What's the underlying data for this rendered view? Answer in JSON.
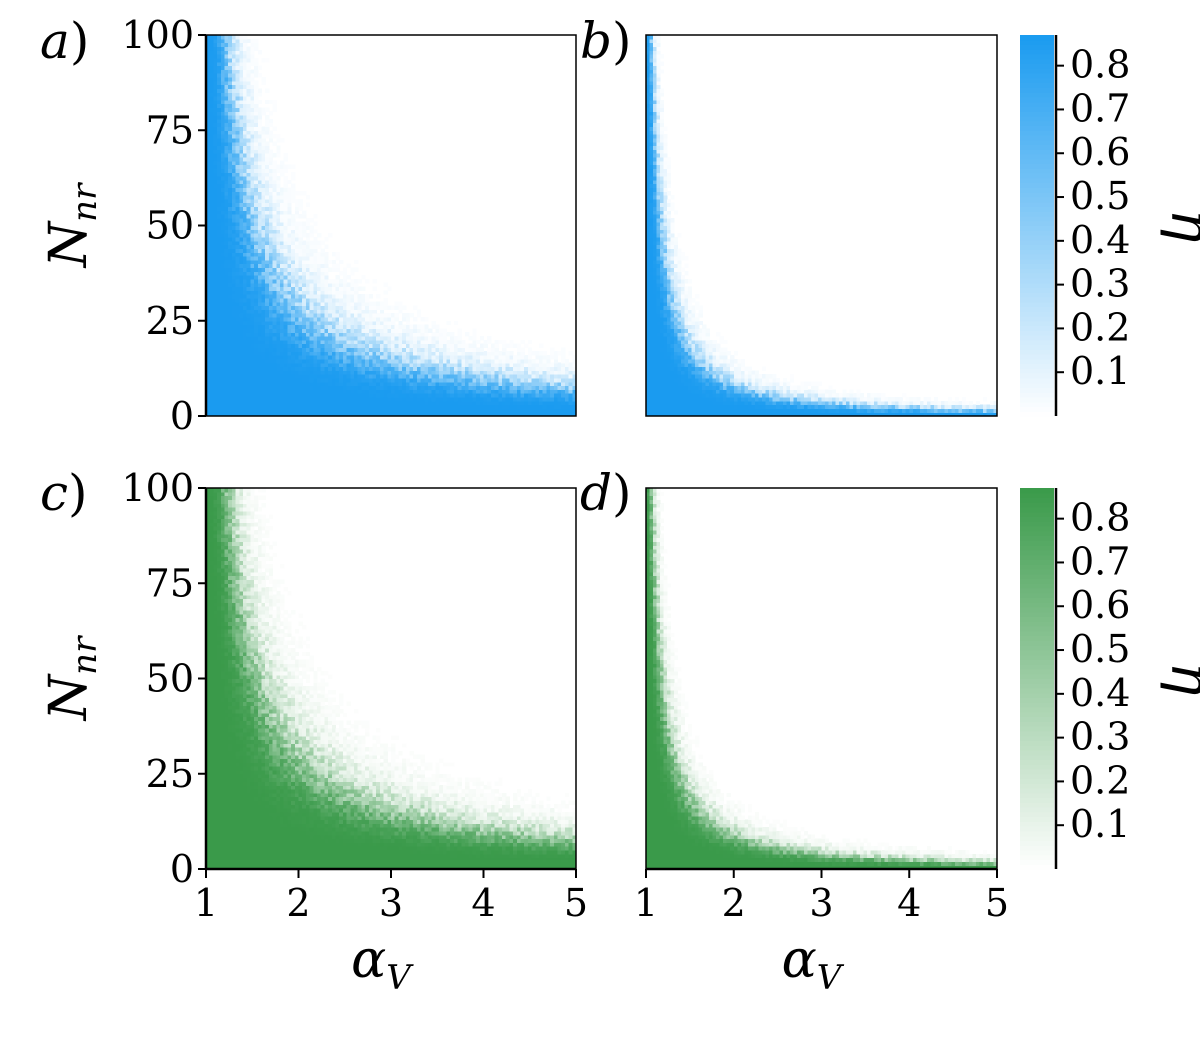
{
  "chart_data": [
    {
      "type": "heatmap",
      "panel_label": "a",
      "color": "#1a9bf0",
      "x_var": "α",
      "x_sub": "V",
      "y_var": "N",
      "y_sub": "nr",
      "xlim": [
        1,
        5
      ],
      "ylim": [
        0,
        100
      ],
      "xticks": [
        "1",
        "2",
        "3",
        "4",
        "5"
      ],
      "yticks": [
        "0",
        "25",
        "50",
        "75",
        "100"
      ],
      "show_xticks": false,
      "show_yticks": true,
      "boundary_k": 30,
      "boundary_power": 1.0,
      "transition_width": 0.35,
      "eta_max": 0.87
    },
    {
      "type": "heatmap",
      "panel_label": "b",
      "color": "#1a9bf0",
      "x_var": "α",
      "x_sub": "V",
      "y_var": "N",
      "y_sub": "nr",
      "xlim": [
        1,
        5
      ],
      "ylim": [
        0,
        100
      ],
      "xticks": [
        "1",
        "2",
        "3",
        "4",
        "5"
      ],
      "yticks": [
        "0",
        "25",
        "50",
        "75",
        "100"
      ],
      "show_xticks": false,
      "show_yticks": false,
      "boundary_k": 9,
      "boundary_power": 1.25,
      "transition_width": 0.32,
      "eta_max": 0.87
    },
    {
      "type": "heatmap",
      "panel_label": "c",
      "color": "#3a9a4a",
      "x_var": "α",
      "x_sub": "V",
      "y_var": "N",
      "y_sub": "nr",
      "xlim": [
        1,
        5
      ],
      "ylim": [
        0,
        100
      ],
      "xticks": [
        "1",
        "2",
        "3",
        "4",
        "5"
      ],
      "yticks": [
        "0",
        "25",
        "50",
        "75",
        "100"
      ],
      "show_xticks": true,
      "show_yticks": true,
      "boundary_k": 32,
      "boundary_power": 1.0,
      "transition_width": 0.35,
      "eta_max": 0.87
    },
    {
      "type": "heatmap",
      "panel_label": "d",
      "color": "#3a9a4a",
      "x_var": "α",
      "x_sub": "V",
      "y_var": "N",
      "y_sub": "nr",
      "xlim": [
        1,
        5
      ],
      "ylim": [
        0,
        100
      ],
      "xticks": [
        "1",
        "2",
        "3",
        "4",
        "5"
      ],
      "yticks": [
        "0",
        "25",
        "50",
        "75",
        "100"
      ],
      "show_xticks": true,
      "show_yticks": false,
      "boundary_k": 10,
      "boundary_power": 1.2,
      "transition_width": 0.32,
      "eta_max": 0.87
    }
  ],
  "colorbars": [
    {
      "color": "#1a9bf0",
      "label": "η",
      "ticks": [
        "0.1",
        "0.2",
        "0.3",
        "0.4",
        "0.5",
        "0.6",
        "0.7",
        "0.8"
      ],
      "range": [
        0,
        0.87
      ]
    },
    {
      "color": "#3a9a4a",
      "label": "η",
      "ticks": [
        "0.1",
        "0.2",
        "0.3",
        "0.4",
        "0.5",
        "0.6",
        "0.7",
        "0.8"
      ],
      "range": [
        0,
        0.87
      ]
    }
  ]
}
